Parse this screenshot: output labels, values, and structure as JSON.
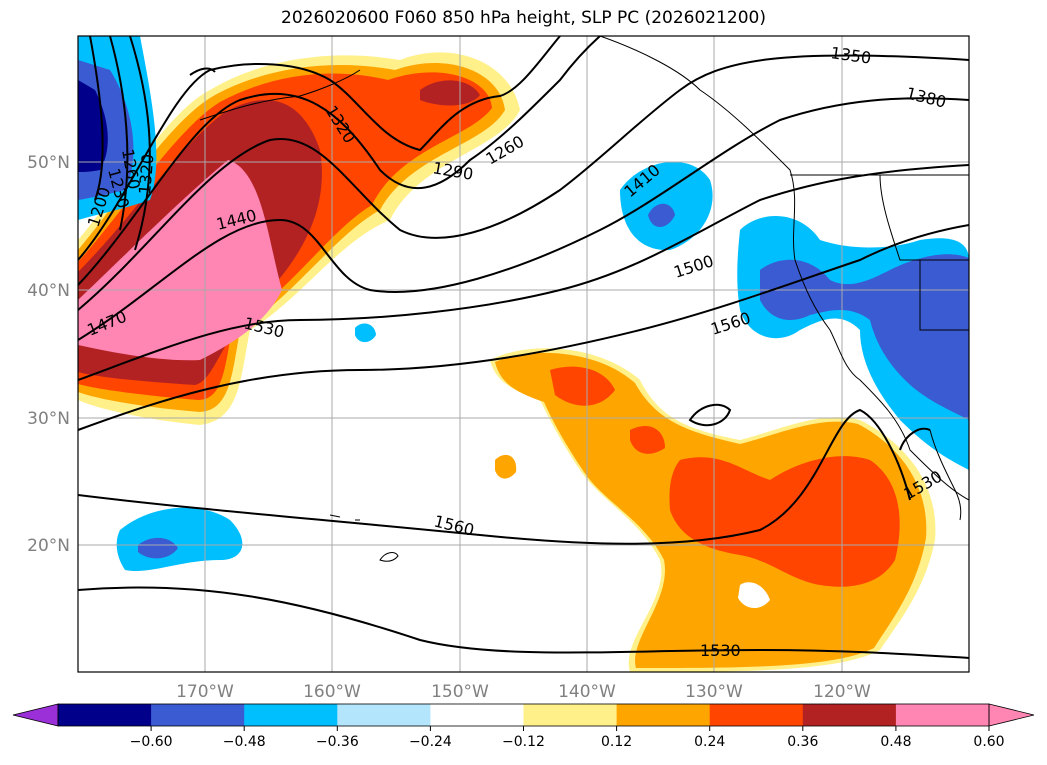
{
  "title": "2026020600 F060 850 hPa height, SLP PC (2026021200)",
  "axes": {
    "lat_labels": [
      "50°N",
      "40°N",
      "30°N",
      "20°N"
    ],
    "lon_labels": [
      "170°W",
      "160°W",
      "150°W",
      "140°W",
      "130°W",
      "120°W"
    ]
  },
  "contour_labels": [
    "1350",
    "1380",
    "1320",
    "1290",
    "1260",
    "1410",
    "1440",
    "1200",
    "1230",
    "1260",
    "1320",
    "1500",
    "1470",
    "1530",
    "1560",
    "1530",
    "1560",
    "1530"
  ],
  "colorbar": {
    "ticks": [
      "−0.60",
      "−0.48",
      "−0.36",
      "−0.24",
      "−0.12",
      "0.12",
      "0.24",
      "0.36",
      "0.48",
      "0.60"
    ],
    "colors": [
      "#9b30d8",
      "#00008b",
      "#3a5bd1",
      "#00bfff",
      "#b3e5fc",
      "#ffffff",
      "#fff08a",
      "#ffa500",
      "#ff4500",
      "#b22222",
      "#ff85b3",
      "#ff85b3"
    ]
  },
  "colors": {
    "grid": "#aaaaaa",
    "axis_label": "#808080",
    "contour": "#000000"
  }
}
